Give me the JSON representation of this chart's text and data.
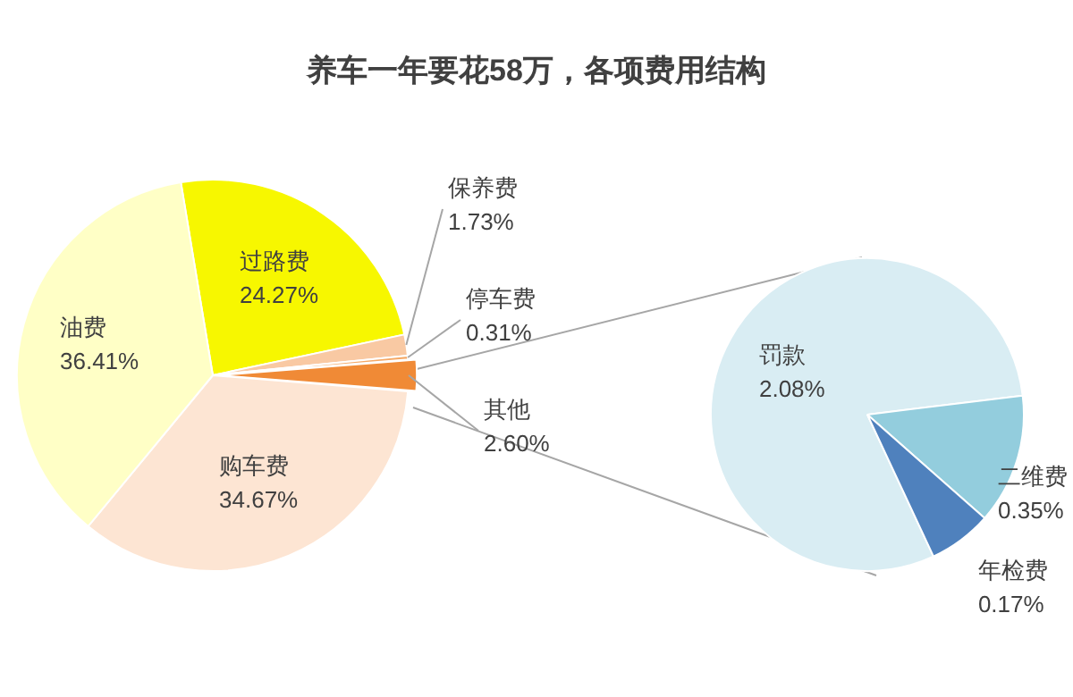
{
  "chart_data": [
    {
      "type": "pie",
      "title": "养车一年要花58万，各项费用结构",
      "categories": [
        "过路费",
        "保养费",
        "停车费",
        "其他",
        "购车费",
        "油费"
      ],
      "values": [
        24.27,
        1.73,
        0.31,
        2.6,
        34.67,
        36.41
      ],
      "value_labels": [
        "24.27%",
        "1.73%",
        "0.31%",
        "2.60%",
        "34.67%",
        "36.41%"
      ],
      "colors": [
        "#f7f700",
        "#f9c9a3",
        "#f5a865",
        "#f08a36",
        "#fde5d3",
        "#ffffc6"
      ]
    },
    {
      "type": "pie",
      "categories": [
        "罚款",
        "二维费",
        "年检费"
      ],
      "values": [
        2.08,
        0.35,
        0.17
      ],
      "value_labels": [
        "2.08%",
        "0.35%",
        "0.17%"
      ],
      "colors": [
        "#d9edf3",
        "#93cddd",
        "#4f81bd"
      ]
    }
  ]
}
